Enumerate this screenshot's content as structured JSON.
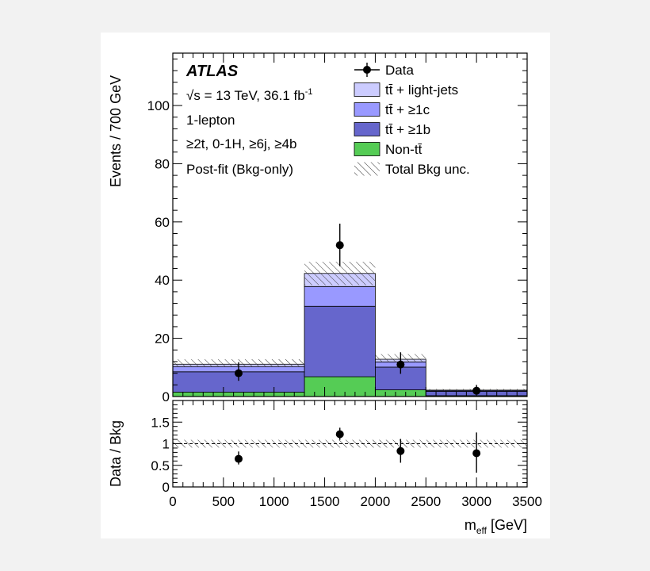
{
  "chart_data": [
    {
      "type": "bar",
      "subtype": "stacked-histogram",
      "title": "",
      "experiment_label": "ATLAS",
      "annotations": [
        {
          "math": "√s",
          "text": " = 13 TeV, 36.1 fb",
          "sup": "-1"
        },
        "1-lepton",
        "≥2t, 0-1H, ≥6j, ≥4b",
        "Post-fit (Bkg-only)"
      ],
      "ylabel": "Events / 700 GeV",
      "xlabel": {
        "main": "m",
        "sub": "eff",
        "unit": " [GeV]"
      },
      "xlim": [
        0,
        3500
      ],
      "ylim": [
        0,
        118
      ],
      "x_ticks": [
        "0",
        "500",
        "1000",
        "1500",
        "2000",
        "2500",
        "3000",
        "3500"
      ],
      "y_ticks": [
        "0",
        "20",
        "40",
        "60",
        "80",
        "100"
      ],
      "bin_edges": [
        0,
        1300,
        2000,
        2500,
        3500
      ],
      "series": [
        {
          "name": "Non-tt̄",
          "color": "#55cc55",
          "values": [
            1.5,
            6.8,
            2.3,
            0.3
          ]
        },
        {
          "name": "tt̄ + ≥1b",
          "color": "#6666cc",
          "values": [
            7.0,
            24.2,
            7.8,
            1.5
          ]
        },
        {
          "name": "tt̄ + ≥1c",
          "color": "#9999ff",
          "values": [
            1.8,
            6.8,
            1.8,
            0.3
          ]
        },
        {
          "name": "tt̄ + light-jets",
          "color": "#ccccff",
          "values": [
            0.8,
            4.5,
            0.9,
            0.1
          ]
        }
      ],
      "uncertainty": {
        "name": "Total Bkg unc.",
        "low": [
          10.4,
          38.3,
          11.8,
          1.9
        ],
        "high": [
          12.8,
          46.3,
          14.6,
          2.6
        ]
      },
      "data": {
        "name": "Data",
        "x": [
          650,
          1650,
          2250,
          3000
        ],
        "y": [
          8,
          52,
          11,
          2
        ],
        "err_low": [
          2.6,
          7.2,
          3.2,
          1.2
        ],
        "err_high": [
          3.8,
          7.4,
          4.2,
          2.0
        ]
      },
      "legend_position": "top-right",
      "legend": [
        {
          "name": "Data",
          "kind": "marker"
        },
        {
          "name": "tt̄ + light-jets",
          "kind": "box",
          "color": "#ccccff"
        },
        {
          "name": "tt̄ + ≥1c",
          "kind": "box",
          "color": "#9999ff"
        },
        {
          "name": "tt̄ + ≥1b",
          "kind": "box",
          "color": "#6666cc"
        },
        {
          "name": "Non-tt̄",
          "kind": "box",
          "color": "#55cc55"
        },
        {
          "name": "Total Bkg unc.",
          "kind": "hatch"
        }
      ]
    },
    {
      "type": "scatter",
      "subtype": "ratio",
      "ylabel": "Data / Bkg",
      "ylim": [
        0,
        2
      ],
      "y_ticks": [
        "0",
        "0.5",
        "1",
        "1.5"
      ],
      "reference_line": 1,
      "uncertainty_band": [
        0.91,
        1.09
      ],
      "x": [
        650,
        1650,
        2250,
        3000
      ],
      "y": [
        0.65,
        1.22,
        0.83,
        0.78
      ],
      "err_low": [
        0.13,
        0.13,
        0.27,
        0.45
      ],
      "err_high": [
        0.17,
        0.15,
        0.28,
        0.48
      ]
    }
  ]
}
